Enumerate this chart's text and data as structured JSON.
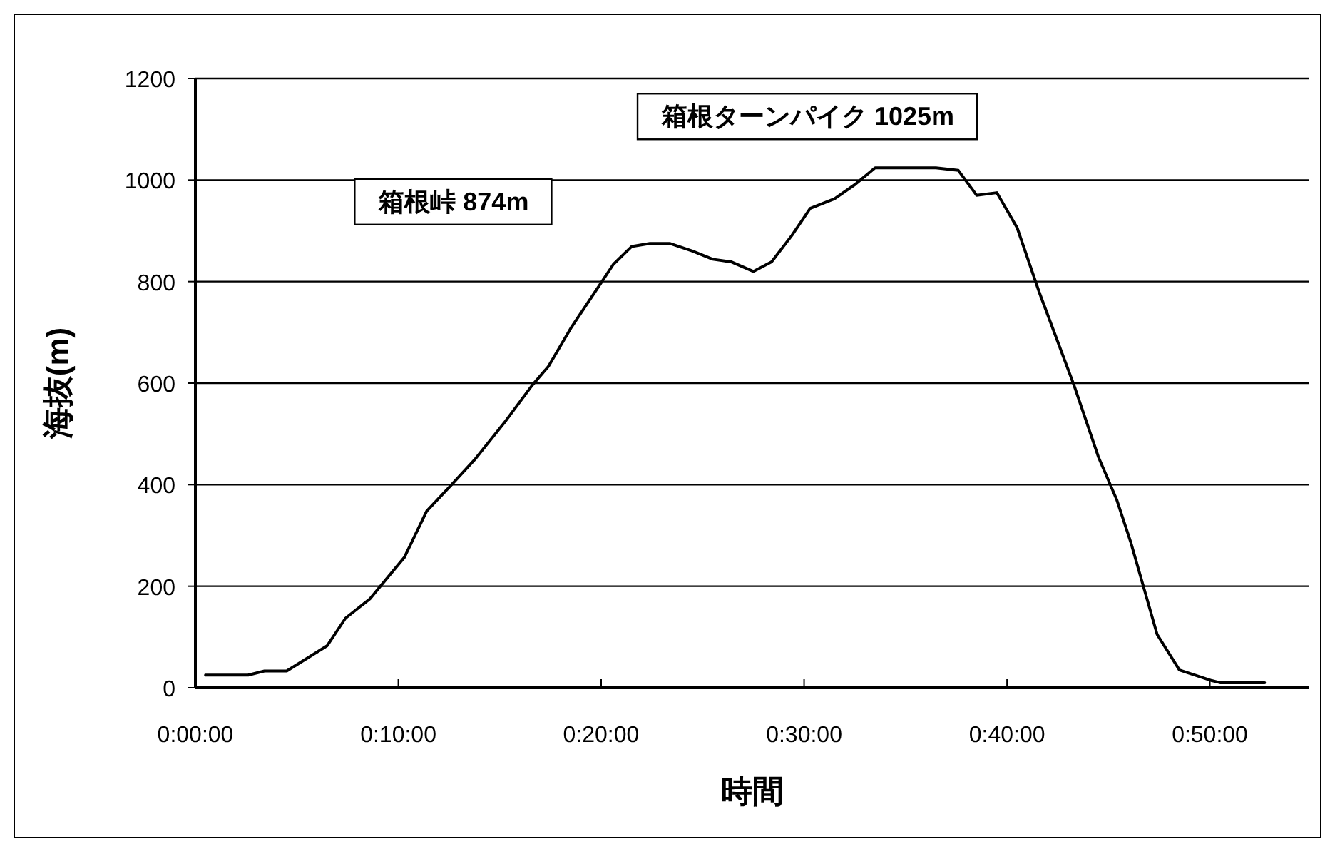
{
  "chart_data": {
    "type": "line",
    "xlabel": "時間",
    "ylabel": "海抜(m)",
    "annotations": [
      "箱根峠  874m",
      "箱根ターンパイク  1025m"
    ],
    "x": [
      0.0083,
      0.0433,
      0.0567,
      0.075,
      0.1083,
      0.1233,
      0.1433,
      0.1717,
      0.19,
      0.21,
      0.23,
      0.255,
      0.2767,
      0.29,
      0.3083,
      0.3317,
      0.3433,
      0.3583,
      0.3733,
      0.39,
      0.4083,
      0.425,
      0.44,
      0.4583,
      0.4733,
      0.49,
      0.505,
      0.525,
      0.5417,
      0.5583,
      0.6083,
      0.6267,
      0.6417,
      0.6583,
      0.675,
      0.6933,
      0.7217,
      0.7417,
      0.7567,
      0.7683,
      0.7783,
      0.79,
      0.8083,
      0.835,
      0.8417,
      0.8783
    ],
    "series": [
      {
        "color": "#000000",
        "values": [
          25,
          25,
          33,
          33,
          83,
          137,
          175,
          257,
          348,
          399,
          451,
          526,
          596,
          633,
          708,
          792,
          834,
          869,
          875,
          875,
          860,
          844,
          839,
          820,
          839,
          891,
          944,
          963,
          991,
          1024,
          1024,
          1019,
          970,
          975,
          906,
          778,
          596,
          455,
          371,
          287,
          203,
          105,
          35,
          14,
          10,
          10
        ]
      }
    ],
    "xlim": [
      0,
      0.915
    ],
    "xticks": [
      {
        "value": 0,
        "label": "0:00:00"
      },
      {
        "value": 0.1667,
        "label": "0:10:00"
      },
      {
        "value": 0.3333,
        "label": "0:20:00"
      },
      {
        "value": 0.5,
        "label": "0:30:00"
      },
      {
        "value": 0.6667,
        "label": "0:40:00"
      },
      {
        "value": 0.8333,
        "label": "0:50:00"
      }
    ],
    "ylim": [
      0,
      1200
    ],
    "yticks": [
      0,
      200,
      400,
      600,
      800,
      1000,
      1200
    ],
    "grid": "y",
    "marker": "none",
    "line_style": "solid"
  }
}
